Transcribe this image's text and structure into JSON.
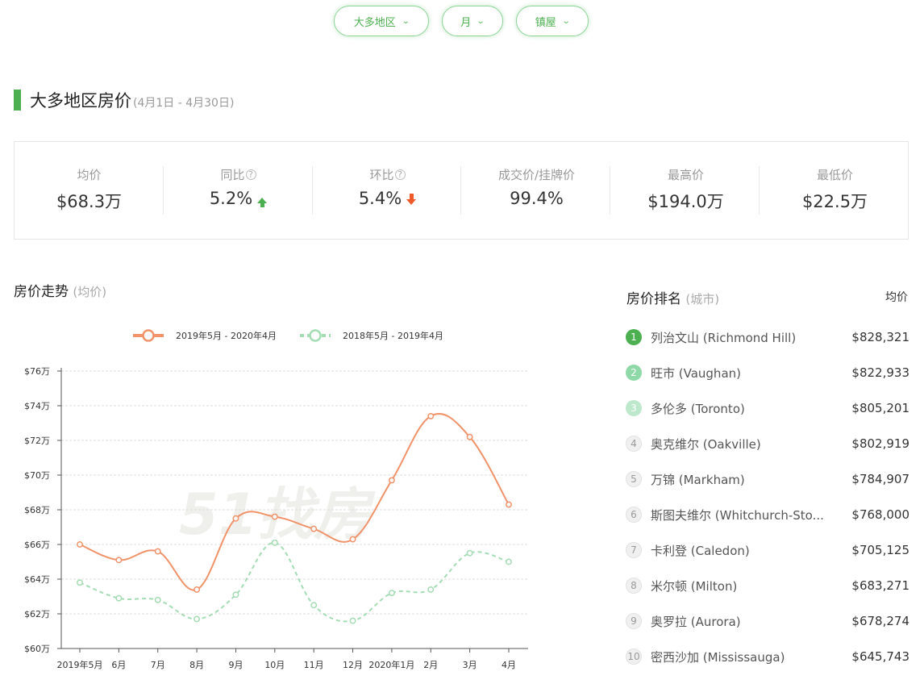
{
  "filters": [
    {
      "label": "大多地区"
    },
    {
      "label": "月"
    },
    {
      "label": "镇屋"
    }
  ],
  "section": {
    "title": "大多地区房价",
    "range": "(4月1日 - 4月30日)"
  },
  "stats": [
    {
      "label": "均价",
      "value": "$68.3万",
      "help": false,
      "trend": ""
    },
    {
      "label": "同比",
      "value": "5.2%",
      "help": true,
      "trend": "up"
    },
    {
      "label": "环比",
      "value": "5.4%",
      "help": true,
      "trend": "down"
    },
    {
      "label": "成交价/挂牌价",
      "value": "99.4%",
      "help": false,
      "trend": ""
    },
    {
      "label": "最高价",
      "value": "$194.0万",
      "help": false,
      "trend": ""
    },
    {
      "label": "最低价",
      "value": "$22.5万",
      "help": false,
      "trend": ""
    }
  ],
  "chart_title": {
    "main": "房价走势",
    "sub": "(均价)"
  },
  "chart_data": {
    "type": "line",
    "categories": [
      "2019年5月",
      "6月",
      "7月",
      "8月",
      "9月",
      "10月",
      "11月",
      "12月",
      "2020年1月",
      "2月",
      "3月",
      "4月"
    ],
    "series": [
      {
        "name": "2019年5月 - 2020年4月",
        "color": "#f0936a",
        "style": "solid",
        "values": [
          66.0,
          65.1,
          65.6,
          63.4,
          67.5,
          67.6,
          66.9,
          66.3,
          69.7,
          73.4,
          72.2,
          68.3
        ]
      },
      {
        "name": "2018年5月 - 2019年4月",
        "color": "#a4dcb4",
        "style": "dashed",
        "values": [
          63.8,
          62.9,
          62.8,
          61.7,
          63.1,
          66.1,
          62.5,
          61.6,
          63.2,
          63.4,
          65.5,
          65.0
        ]
      }
    ],
    "y_ticks": [
      "$60万",
      "$62万",
      "$64万",
      "$66万",
      "$68万",
      "$70万",
      "$72万",
      "$74万",
      "$76万"
    ],
    "ylim": [
      60,
      76
    ],
    "grid": true,
    "legend": "top-center"
  },
  "ranking": {
    "title": "房价排名",
    "sub": "(城市)",
    "avg_label": "均价",
    "rows": [
      {
        "rank": "1",
        "name": "列治文山 (Richmond Hill)",
        "price": "$828,321",
        "color": "#4caf50"
      },
      {
        "rank": "2",
        "name": "旺市 (Vaughan)",
        "price": "$822,933",
        "color": "#8fd9a8"
      },
      {
        "rank": "3",
        "name": "多伦多 (Toronto)",
        "price": "$805,201",
        "color": "#bde8cc"
      },
      {
        "rank": "4",
        "name": "奥克维尔 (Oakville)",
        "price": "$802,919",
        "color": ""
      },
      {
        "rank": "5",
        "name": "万锦 (Markham)",
        "price": "$784,907",
        "color": ""
      },
      {
        "rank": "6",
        "name": "斯图夫维尔 (Whitchurch-Sto...",
        "price": "$768,000",
        "color": ""
      },
      {
        "rank": "7",
        "name": "卡利登 (Caledon)",
        "price": "$705,125",
        "color": ""
      },
      {
        "rank": "8",
        "name": "米尔顿 (Milton)",
        "price": "$683,271",
        "color": ""
      },
      {
        "rank": "9",
        "name": "奥罗拉 (Aurora)",
        "price": "$678,274",
        "color": ""
      },
      {
        "rank": "10",
        "name": "密西沙加 (Mississauga)",
        "price": "$645,743",
        "color": ""
      }
    ]
  }
}
